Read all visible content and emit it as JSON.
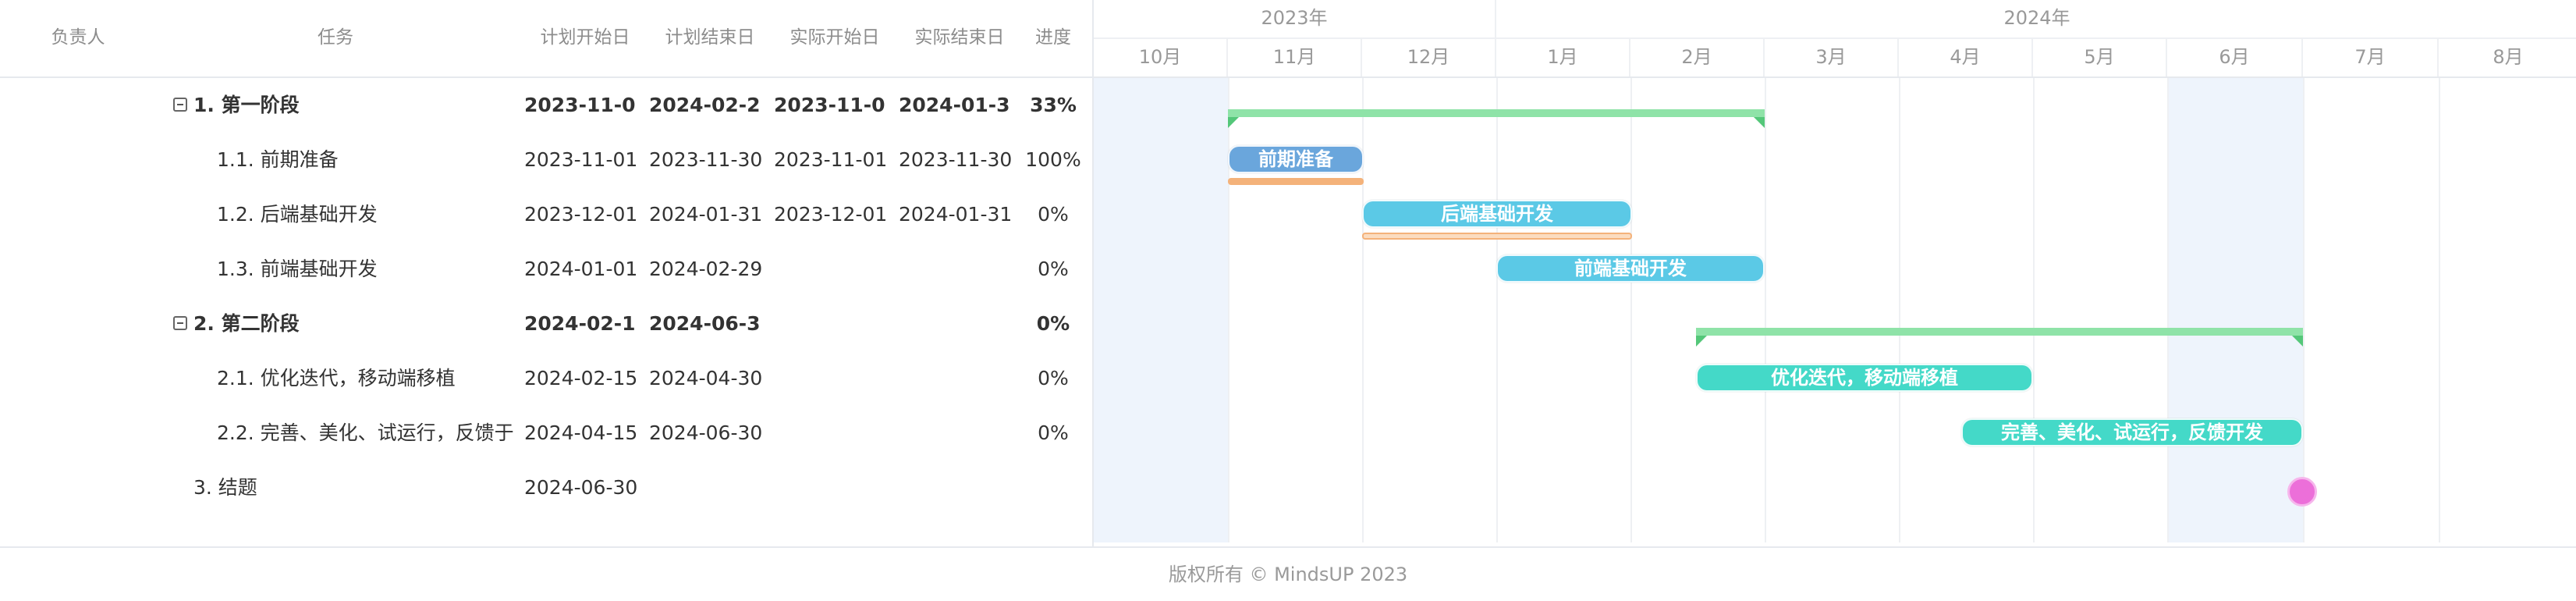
{
  "columns": {
    "owner": "负责人",
    "task": "任务",
    "plan_start": "计划开始日",
    "plan_end": "计划结束日",
    "actual_start": "实际开始日",
    "actual_end": "实际结束日",
    "progress": "进度"
  },
  "years": [
    "2023年",
    "2024年"
  ],
  "months": [
    "10月",
    "11月",
    "12月",
    "1月",
    "2月",
    "3月",
    "4月",
    "5月",
    "6月",
    "7月",
    "8月"
  ],
  "rows": [
    {
      "task": "1. 第一阶段",
      "plan_start": "2023-11-0",
      "plan_end": "2024-02-2",
      "actual_start": "2023-11-0",
      "actual_end": "2024-01-3",
      "progress": "33%"
    },
    {
      "task": "1.1. 前期准备",
      "plan_start": "2023-11-01",
      "plan_end": "2023-11-30",
      "actual_start": "2023-11-01",
      "actual_end": "2023-11-30",
      "progress": "100%"
    },
    {
      "task": "1.2. 后端基础开发",
      "plan_start": "2023-12-01",
      "plan_end": "2024-01-31",
      "actual_start": "2023-12-01",
      "actual_end": "2024-01-31",
      "progress": "0%"
    },
    {
      "task": "1.3. 前端基础开发",
      "plan_start": "2024-01-01",
      "plan_end": "2024-02-29",
      "actual_start": "",
      "actual_end": "",
      "progress": "0%"
    },
    {
      "task": "2. 第二阶段",
      "plan_start": "2024-02-1",
      "plan_end": "2024-06-3",
      "actual_start": "",
      "actual_end": "",
      "progress": "0%"
    },
    {
      "task": "2.1. 优化迭代，移动端移植",
      "plan_start": "2024-02-15",
      "plan_end": "2024-04-30",
      "actual_start": "",
      "actual_end": "",
      "progress": "0%"
    },
    {
      "task": "2.2. 完善、美化、试运行，反馈于",
      "plan_start": "2024-04-15",
      "plan_end": "2024-06-30",
      "actual_start": "",
      "actual_end": "",
      "progress": "0%"
    },
    {
      "task": "3. 结题",
      "plan_start": "2024-06-30",
      "plan_end": "",
      "actual_start": "",
      "actual_end": "",
      "progress": ""
    }
  ],
  "bars": {
    "b1": "前期准备",
    "b2": "后端基础开发",
    "b3": "前端基础开发",
    "b5": "优化迭代，移动端移植",
    "b6": "完善、美化、试运行，反馈开发"
  },
  "colors": {
    "summary": "#8fe3a8",
    "task_blue": "#6aa6dc",
    "task_cyan": "#5bc9e6",
    "task_teal": "#44d9c8",
    "actual_orange": "#f4b27a",
    "actual_peach": "#fbdcc0",
    "milestone": "#ec6fd9"
  },
  "footer": "版权所有 © MindsUP 2023"
}
